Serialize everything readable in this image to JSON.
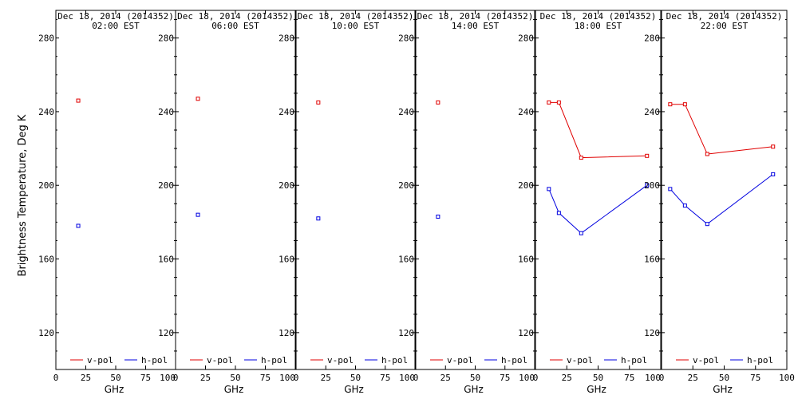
{
  "colors": {
    "v-pol": "#e00000",
    "h-pol": "#0000e0",
    "frame": "#000000",
    "background": "#ffffff"
  },
  "chart_data": [
    {
      "type": "line",
      "title_line1": "Dec 18, 2014 (2014352)",
      "title_line2": "02:00 EST",
      "xlabel": "GHz",
      "ylabel": "Brightness Temperature, Deg K",
      "xlim": [
        0,
        100
      ],
      "ylim": [
        100,
        295
      ],
      "xticks": [
        0,
        25,
        50,
        75,
        100
      ],
      "yticks": [
        120,
        160,
        200,
        240,
        280
      ],
      "series": [
        {
          "name": "v-pol",
          "color": "#e00000",
          "x": [
            18.7
          ],
          "y": [
            246
          ]
        },
        {
          "name": "h-pol",
          "color": "#0000e0",
          "x": [
            18.7
          ],
          "y": [
            178
          ]
        }
      ]
    },
    {
      "type": "line",
      "title_line1": "Dec 18, 2014 (2014352)",
      "title_line2": "06:00 EST",
      "xlabel": "GHz",
      "xlim": [
        0,
        100
      ],
      "ylim": [
        100,
        295
      ],
      "xticks": [
        0,
        25,
        50,
        75,
        100
      ],
      "yticks": [
        120,
        160,
        200,
        240,
        280
      ],
      "series": [
        {
          "name": "v-pol",
          "color": "#e00000",
          "x": [
            18.7
          ],
          "y": [
            247
          ]
        },
        {
          "name": "h-pol",
          "color": "#0000e0",
          "x": [
            18.7
          ],
          "y": [
            184
          ]
        }
      ]
    },
    {
      "type": "line",
      "title_line1": "Dec 18, 2014 (2014352)",
      "title_line2": "10:00 EST",
      "xlabel": "GHz",
      "xlim": [
        0,
        100
      ],
      "ylim": [
        100,
        295
      ],
      "xticks": [
        0,
        25,
        50,
        75,
        100
      ],
      "yticks": [
        120,
        160,
        200,
        240,
        280
      ],
      "series": [
        {
          "name": "v-pol",
          "color": "#e00000",
          "x": [
            18.7
          ],
          "y": [
            245
          ]
        },
        {
          "name": "h-pol",
          "color": "#0000e0",
          "x": [
            18.7
          ],
          "y": [
            182
          ]
        }
      ]
    },
    {
      "type": "line",
      "title_line1": "Dec 18, 2014 (2014352)",
      "title_line2": "14:00 EST",
      "xlabel": "GHz",
      "xlim": [
        0,
        100
      ],
      "ylim": [
        100,
        295
      ],
      "xticks": [
        0,
        25,
        50,
        75,
        100
      ],
      "yticks": [
        120,
        160,
        200,
        240,
        280
      ],
      "series": [
        {
          "name": "v-pol",
          "color": "#e00000",
          "x": [
            18.7
          ],
          "y": [
            245
          ]
        },
        {
          "name": "h-pol",
          "color": "#0000e0",
          "x": [
            18.7
          ],
          "y": [
            183
          ]
        }
      ]
    },
    {
      "type": "line",
      "title_line1": "Dec 18, 2014 (2014352)",
      "title_line2": "18:00 EST",
      "xlabel": "GHz",
      "xlim": [
        0,
        100
      ],
      "ylim": [
        100,
        295
      ],
      "xticks": [
        0,
        25,
        50,
        75,
        100
      ],
      "yticks": [
        120,
        160,
        200,
        240,
        280
      ],
      "series": [
        {
          "name": "v-pol",
          "color": "#e00000",
          "x": [
            10.7,
            18.7,
            36.5,
            89.0
          ],
          "y": [
            245,
            245,
            215,
            216
          ]
        },
        {
          "name": "h-pol",
          "color": "#0000e0",
          "x": [
            10.7,
            18.7,
            36.5,
            89.0
          ],
          "y": [
            198,
            185,
            174,
            200
          ]
        }
      ]
    },
    {
      "type": "line",
      "title_line1": "Dec 18, 2014 (2014352)",
      "title_line2": "22:00 EST",
      "xlabel": "GHz",
      "xlim": [
        0,
        100
      ],
      "ylim": [
        100,
        295
      ],
      "xticks": [
        0,
        25,
        50,
        75,
        100
      ],
      "yticks": [
        120,
        160,
        200,
        240,
        280
      ],
      "series": [
        {
          "name": "v-pol",
          "color": "#e00000",
          "x": [
            6.9,
            18.7,
            36.5,
            89.0
          ],
          "y": [
            244,
            244,
            217,
            221
          ]
        },
        {
          "name": "h-pol",
          "color": "#0000e0",
          "x": [
            6.9,
            18.7,
            36.5,
            89.0
          ],
          "y": [
            198,
            189,
            179,
            206
          ]
        }
      ]
    }
  ]
}
